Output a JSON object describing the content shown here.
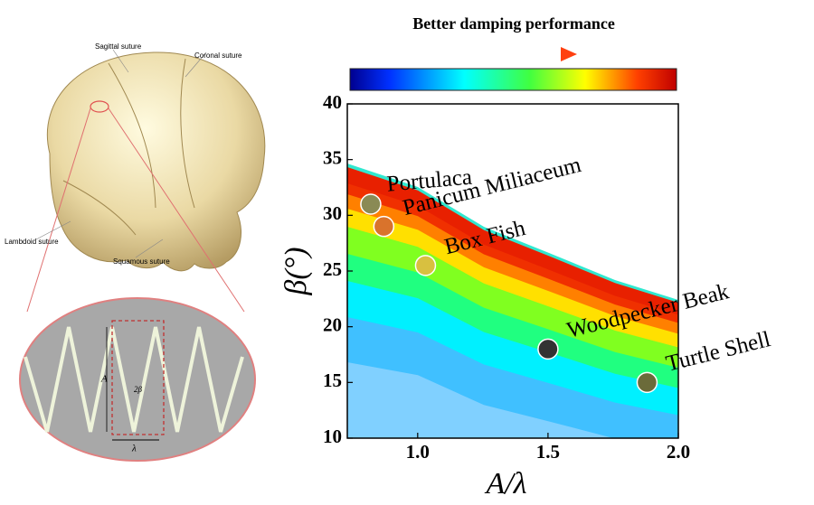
{
  "chart_data": {
    "type": "scatter",
    "title": "Better damping performance",
    "xlabel": "A/λ",
    "ylabel": "β(°)",
    "xlim": [
      0.73,
      2.0
    ],
    "ylim": [
      10,
      40
    ],
    "xticks": [
      {
        "value": 1.0,
        "label": "1.0"
      },
      1.5,
      {
        "value": 2.0,
        "label": "2.0"
      }
    ],
    "yticks": [
      10,
      15,
      20,
      25,
      30,
      35,
      40
    ],
    "points": [
      {
        "name": "Portulaca",
        "x": 0.82,
        "y": 31,
        "color": "#8a8a55"
      },
      {
        "name": "Panicum Miliaceum",
        "x": 0.87,
        "y": 29,
        "color": "#d9732c"
      },
      {
        "name": "Box Fish",
        "x": 1.03,
        "y": 25.5,
        "color": "#d8c040"
      },
      {
        "name": "Woodpecker Beak",
        "x": 1.5,
        "y": 18,
        "color": "#333333"
      },
      {
        "name": "Turtle Shell",
        "x": 1.88,
        "y": 15,
        "color": "#6b6b3a"
      }
    ],
    "illustration": {
      "labels": [
        "Sagittal suture",
        "Coronal suture",
        "Lambdoid suture",
        "Squamous suture"
      ],
      "inset_labels": [
        "A",
        "2β",
        "λ"
      ]
    }
  }
}
